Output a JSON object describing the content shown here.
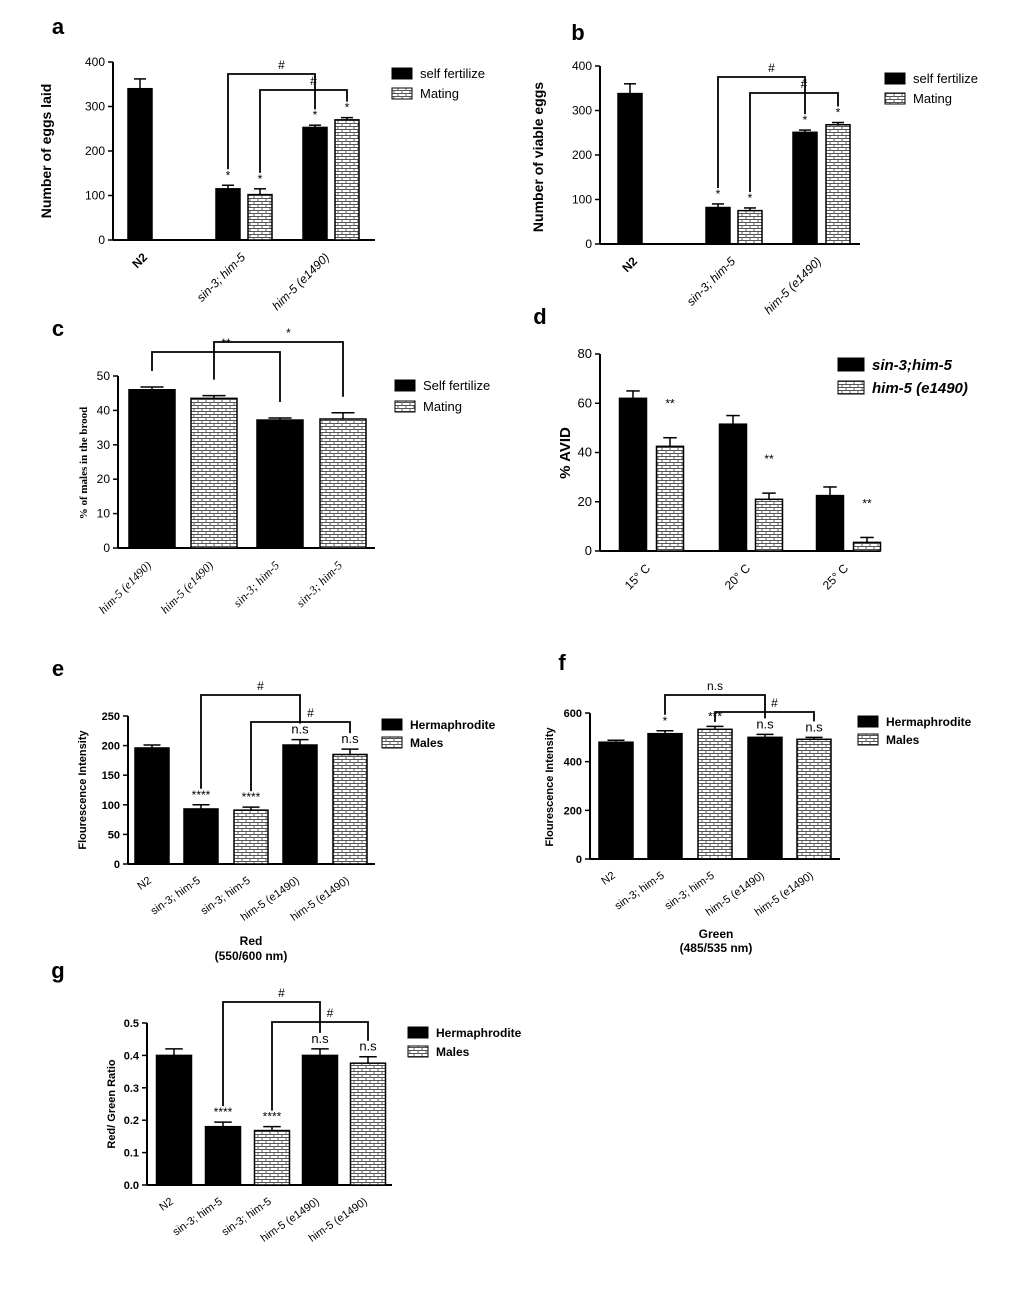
{
  "colors": {
    "fill_solid": "#000000",
    "fill_pattern": "#ffffff",
    "pattern_line": "#555555",
    "axis": "#000000"
  },
  "chart_data": [
    {
      "panel": "a",
      "type": "bar",
      "ylabel": "Number of eggs laid",
      "ylim": [
        0,
        400
      ],
      "yticks": [
        0,
        100,
        200,
        300,
        400
      ],
      "groups": [
        "N2",
        "sin-3; him-5",
        "him-5 (e1490)"
      ],
      "group_italic": [
        false,
        true,
        true
      ],
      "series": [
        {
          "name": "self fertilize",
          "fill": "solid"
        },
        {
          "name": "Mating",
          "fill": "pattern"
        }
      ],
      "bars": [
        {
          "group": 0,
          "series": 0,
          "value": 340,
          "err": 22,
          "label": ""
        },
        {
          "group": 1,
          "series": 0,
          "value": 115,
          "err": 8,
          "label": "*"
        },
        {
          "group": 1,
          "series": 1,
          "value": 102,
          "err": 13,
          "label": "*"
        },
        {
          "group": 2,
          "series": 0,
          "value": 253,
          "err": 5,
          "label": "*"
        },
        {
          "group": 2,
          "series": 1,
          "value": 270,
          "err": 5,
          "label": "*"
        }
      ],
      "brackets": [
        {
          "from": 1,
          "to": 3,
          "label": "#"
        },
        {
          "from": 2,
          "to": 4,
          "label": "#"
        }
      ],
      "legend": "right"
    },
    {
      "panel": "b",
      "type": "bar",
      "ylabel": "Number of viable eggs",
      "ylim": [
        0,
        400
      ],
      "yticks": [
        0,
        100,
        200,
        300,
        400
      ],
      "groups": [
        "N2",
        "sin-3; him-5",
        "him-5 (e1490)"
      ],
      "group_italic": [
        false,
        true,
        true
      ],
      "series": [
        {
          "name": "self fertilize",
          "fill": "solid"
        },
        {
          "name": "Mating",
          "fill": "pattern"
        }
      ],
      "bars": [
        {
          "group": 0,
          "series": 0,
          "value": 338,
          "err": 22,
          "label": ""
        },
        {
          "group": 1,
          "series": 0,
          "value": 82,
          "err": 8,
          "label": "*"
        },
        {
          "group": 1,
          "series": 1,
          "value": 75,
          "err": 6,
          "label": "*"
        },
        {
          "group": 2,
          "series": 0,
          "value": 251,
          "err": 5,
          "label": "*"
        },
        {
          "group": 2,
          "series": 1,
          "value": 268,
          "err": 5,
          "label": "*"
        }
      ],
      "brackets": [
        {
          "from": 1,
          "to": 3,
          "label": "#"
        },
        {
          "from": 2,
          "to": 4,
          "label": "#"
        }
      ],
      "legend": "right"
    },
    {
      "panel": "c",
      "type": "bar",
      "ylabel": "% of males in the brood",
      "ylim": [
        0,
        50
      ],
      "yticks": [
        0,
        10,
        20,
        30,
        40,
        50
      ],
      "groups": [
        "him-5 (e1490)",
        "him-5 (e1490)",
        "sin-3; him-5",
        "sin-3; him-5"
      ],
      "group_italic": [
        true,
        true,
        true,
        true
      ],
      "series": [
        {
          "name": "Self fertilize",
          "fill": "solid"
        },
        {
          "name": "Mating",
          "fill": "pattern"
        }
      ],
      "bars": [
        {
          "group": 0,
          "series": 0,
          "value": 46,
          "err": 0.8,
          "label": ""
        },
        {
          "group": 1,
          "series": 1,
          "value": 43.5,
          "err": 0.8,
          "label": ""
        },
        {
          "group": 2,
          "series": 0,
          "value": 37.2,
          "err": 0.6,
          "label": ""
        },
        {
          "group": 3,
          "series": 1,
          "value": 37.5,
          "err": 1.8,
          "label": ""
        }
      ],
      "brackets": [
        {
          "from": 0,
          "to": 2,
          "label": "**"
        },
        {
          "from": 1,
          "to": 3,
          "label": "*"
        }
      ],
      "legend": "right"
    },
    {
      "panel": "d",
      "type": "bar",
      "ylabel": "% AVID",
      "ylim": [
        0,
        80
      ],
      "yticks": [
        0,
        20,
        40,
        60,
        80
      ],
      "groups": [
        "15° C",
        "20° C",
        "25° C"
      ],
      "group_italic": [
        false,
        false,
        false
      ],
      "series": [
        {
          "name": "sin-3;him-5",
          "fill": "solid"
        },
        {
          "name": "him-5 (e1490)",
          "fill": "pattern"
        }
      ],
      "bars": [
        {
          "group": 0,
          "series": 0,
          "value": 62,
          "err": 3,
          "label": ""
        },
        {
          "group": 0,
          "series": 1,
          "value": 42.5,
          "err": 3.5,
          "label": "**"
        },
        {
          "group": 1,
          "series": 0,
          "value": 51.5,
          "err": 3.5,
          "label": ""
        },
        {
          "group": 1,
          "series": 1,
          "value": 21,
          "err": 2.5,
          "label": "**"
        },
        {
          "group": 2,
          "series": 0,
          "value": 22.5,
          "err": 3.5,
          "label": ""
        },
        {
          "group": 2,
          "series": 1,
          "value": 3.5,
          "err": 2,
          "label": "**"
        }
      ],
      "brackets": [],
      "legend": "top-right"
    },
    {
      "panel": "e",
      "type": "bar",
      "ylabel": "Flourescence Intensity",
      "xlabel": "Red",
      "xsublabel": "(550/600 nm)",
      "ylim": [
        0,
        250
      ],
      "yticks": [
        0,
        50,
        100,
        150,
        200,
        250
      ],
      "groups": [
        "N2",
        "sin-3; him-5",
        "sin-3; him-5",
        "him-5 (e1490)",
        "him-5 (e1490)"
      ],
      "group_italic": [
        false,
        false,
        false,
        false,
        false
      ],
      "series": [
        {
          "name": "Hermaphrodite",
          "fill": "solid"
        },
        {
          "name": "Males",
          "fill": "pattern"
        }
      ],
      "bars": [
        {
          "group": 0,
          "series": 0,
          "value": 196,
          "err": 5,
          "label": ""
        },
        {
          "group": 1,
          "series": 0,
          "value": 93,
          "err": 7,
          "label": "****"
        },
        {
          "group": 2,
          "series": 1,
          "value": 91,
          "err": 5,
          "label": "****"
        },
        {
          "group": 3,
          "series": 0,
          "value": 201,
          "err": 9,
          "label": "n.s"
        },
        {
          "group": 4,
          "series": 1,
          "value": 185,
          "err": 9,
          "label": "n.s"
        }
      ],
      "brackets": [
        {
          "from": 1,
          "to": 3,
          "label": "#"
        },
        {
          "from": 2,
          "to": 4,
          "label": "#"
        }
      ],
      "legend": "right"
    },
    {
      "panel": "f",
      "type": "bar",
      "ylabel": "Flourescence Intensity",
      "xlabel": "Green",
      "xsublabel": "(485/535 nm)",
      "ylim": [
        0,
        600
      ],
      "yticks": [
        0,
        200,
        400,
        600
      ],
      "groups": [
        "N2",
        "sin-3; him-5",
        "sin-3; him-5",
        "him-5 (e1490)",
        "him-5 (e1490)"
      ],
      "group_italic": [
        false,
        false,
        false,
        false,
        false
      ],
      "series": [
        {
          "name": "Hermaphrodite",
          "fill": "solid"
        },
        {
          "name": "Males",
          "fill": "pattern"
        }
      ],
      "bars": [
        {
          "group": 0,
          "series": 0,
          "value": 480,
          "err": 8,
          "label": ""
        },
        {
          "group": 1,
          "series": 0,
          "value": 515,
          "err": 12,
          "label": "*"
        },
        {
          "group": 2,
          "series": 1,
          "value": 533,
          "err": 12,
          "label": "***"
        },
        {
          "group": 3,
          "series": 0,
          "value": 500,
          "err": 12,
          "label": "n.s"
        },
        {
          "group": 4,
          "series": 1,
          "value": 492,
          "err": 8,
          "label": "n.s"
        }
      ],
      "brackets": [
        {
          "from": 1,
          "to": 3,
          "label": "n.s"
        },
        {
          "from": 2,
          "to": 4,
          "label": "#"
        }
      ],
      "legend": "right"
    },
    {
      "panel": "g",
      "type": "bar",
      "ylabel": "Red/ Green Ratio",
      "ylim": [
        0,
        0.5
      ],
      "yticks": [
        0.0,
        0.1,
        0.2,
        0.3,
        0.4,
        0.5
      ],
      "groups": [
        "N2",
        "sin-3; him-5",
        "sin-3; him-5",
        "him-5 (e1490)",
        "him-5 (e1490)"
      ],
      "group_italic": [
        false,
        false,
        false,
        false,
        false
      ],
      "series": [
        {
          "name": "Hermaphrodite",
          "fill": "solid"
        },
        {
          "name": "Males",
          "fill": "pattern"
        }
      ],
      "bars": [
        {
          "group": 0,
          "series": 0,
          "value": 0.4,
          "err": 0.02,
          "label": ""
        },
        {
          "group": 1,
          "series": 0,
          "value": 0.18,
          "err": 0.014,
          "label": "****"
        },
        {
          "group": 2,
          "series": 1,
          "value": 0.168,
          "err": 0.012,
          "label": "****"
        },
        {
          "group": 3,
          "series": 0,
          "value": 0.4,
          "err": 0.02,
          "label": "n.s"
        },
        {
          "group": 4,
          "series": 1,
          "value": 0.376,
          "err": 0.02,
          "label": "n.s"
        }
      ],
      "brackets": [
        {
          "from": 1,
          "to": 3,
          "label": "#"
        },
        {
          "from": 2,
          "to": 4,
          "label": "#"
        }
      ],
      "legend": "right"
    }
  ]
}
